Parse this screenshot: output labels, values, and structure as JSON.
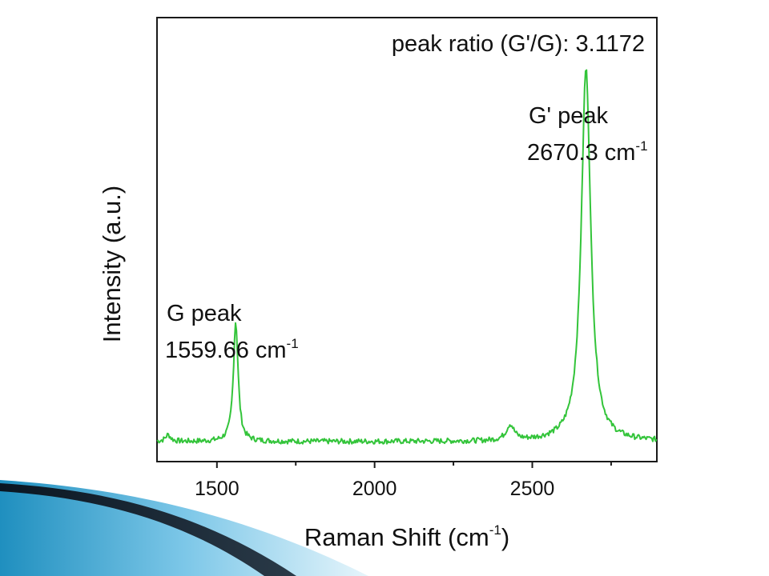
{
  "colors": {
    "spectrum": "#33c43a",
    "axis": "#1a1a1a",
    "accent_dark": "#0d1c2b",
    "accent_light": "#9fd4ec"
  },
  "chart_data": {
    "type": "line",
    "xlabel": "Raman Shift (cm",
    "xlabel_sup": "-1",
    "xlabel_tail": ")",
    "ylabel": "Intensity (a.u.)",
    "xlim": [
      1310,
      2895
    ],
    "ylim": [
      0,
      1
    ],
    "x_ticks": [
      1500,
      2000,
      2500
    ],
    "x_tick_labels": [
      "1500",
      "2000",
      "2500"
    ],
    "x_minor_ticks": [
      1750,
      2250,
      2750
    ],
    "grid": false,
    "annotations": {
      "ratio": "peak ratio (G'/G): 3.1172",
      "g_name": "G peak",
      "g_pos": "1559.66 cm",
      "g_pos_sup": "-1",
      "gp_name": "G' peak",
      "gp_pos": "2670.3 cm",
      "gp_pos_sup": "-1"
    },
    "series": [
      {
        "baseline": 0.045,
        "peaks": [
          {
            "x": 1559.66,
            "height": 0.27,
            "width": 9
          },
          {
            "x": 2670.3,
            "height": 0.84,
            "width": 18
          },
          {
            "x": 2430,
            "height": 0.035,
            "width": 15
          },
          {
            "x": 1345,
            "height": 0.015,
            "width": 10
          }
        ],
        "x_start": 1310,
        "x_end": 2895,
        "x_step": 3
      }
    ]
  }
}
